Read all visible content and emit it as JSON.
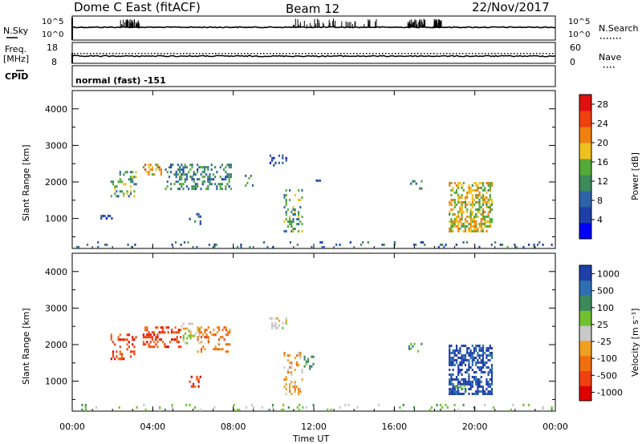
{
  "header": {
    "radar_title": "Dome C East (fitACF)",
    "beam_title": "Beam 12",
    "date_title": "22/Nov/2017"
  },
  "summary_panels": {
    "nsky_label": "N.Sky",
    "nsky_ticks": [
      "10^5",
      "10^0"
    ],
    "nsearch_label": "N.Search",
    "freq_label_line1": "Freq.",
    "freq_label_line2": "[MHz]",
    "freq_ticks": [
      "18",
      "8"
    ],
    "nave_label": "Nave",
    "nave_ticks": [
      "60",
      "0"
    ],
    "cpid_label": "CPID",
    "cpid_value": "normal (fast) -151"
  },
  "colors": {
    "power_scale": [
      "#0000ff",
      "#1e3fa8",
      "#2f63a8",
      "#3d8a5a",
      "#55aa3a",
      "#f0c020",
      "#f08010",
      "#f04010",
      "#e01010"
    ],
    "velocity_scale": [
      "#e00000",
      "#f04010",
      "#f07010",
      "#f0a020",
      "#c8c8c8",
      "#70c030",
      "#3d8a5a",
      "#2f6fb0",
      "#1f3fa8"
    ]
  },
  "chart_data": [
    {
      "type": "heatmap",
      "panel": "power",
      "ylabel": "Slant Range [km]",
      "xlabel": "Time UT",
      "xticks": [
        "00:00",
        "04:00",
        "08:00",
        "12:00",
        "16:00",
        "20:00",
        "00:00"
      ],
      "yticks": [
        "1000",
        "2000",
        "3000",
        "4000"
      ],
      "xlim_hours": [
        0,
        24
      ],
      "ylim_km": [
        180,
        4500
      ],
      "colorbar_label": "Power [dB]",
      "colorbar_ticks": [
        "4",
        "8",
        "12",
        "16",
        "20",
        "24",
        "28"
      ],
      "colorbar_range": [
        0,
        30
      ],
      "patches": [
        {
          "t0": 1.9,
          "t1": 3.2,
          "r0": 1600,
          "r1": 2300,
          "level": 14,
          "density": 0.25
        },
        {
          "t0": 3.5,
          "t1": 4.6,
          "r0": 2200,
          "r1": 2500,
          "level": 20,
          "density": 0.35
        },
        {
          "t0": 4.6,
          "t1": 7.9,
          "r0": 1800,
          "r1": 2500,
          "level": 10,
          "density": 0.35
        },
        {
          "t0": 5.8,
          "t1": 6.4,
          "r0": 850,
          "r1": 1150,
          "level": 8,
          "density": 0.3
        },
        {
          "t0": 1.4,
          "t1": 2.0,
          "r0": 950,
          "r1": 1100,
          "level": 6,
          "density": 0.3
        },
        {
          "t0": 8.4,
          "t1": 9.0,
          "r0": 1900,
          "r1": 2200,
          "level": 10,
          "density": 0.3
        },
        {
          "t0": 9.8,
          "t1": 10.7,
          "r0": 2400,
          "r1": 2750,
          "level": 6,
          "density": 0.35
        },
        {
          "t0": 10.5,
          "t1": 11.5,
          "r0": 600,
          "r1": 1800,
          "level": 12,
          "density": 0.25
        },
        {
          "t0": 12.1,
          "t1": 12.4,
          "r0": 2000,
          "r1": 2200,
          "level": 6,
          "density": 0.3
        },
        {
          "t0": 16.7,
          "t1": 17.4,
          "r0": 1800,
          "r1": 2050,
          "level": 10,
          "density": 0.25
        },
        {
          "t0": 18.7,
          "t1": 20.9,
          "r0": 650,
          "r1": 2000,
          "level": 18,
          "density": 0.55
        },
        {
          "t0": 0.1,
          "t1": 23.9,
          "r0": 190,
          "r1": 380,
          "level": 8,
          "density": 0.08
        }
      ]
    },
    {
      "type": "heatmap",
      "panel": "velocity",
      "ylabel": "Slant Range [km]",
      "xlabel": "Time UT",
      "xticks": [
        "00:00",
        "04:00",
        "08:00",
        "12:00",
        "16:00",
        "20:00",
        "00:00"
      ],
      "yticks": [
        "1000",
        "2000",
        "3000",
        "4000"
      ],
      "xlim_hours": [
        0,
        24
      ],
      "ylim_km": [
        180,
        4500
      ],
      "colorbar_label": "Velocity [m s⁻¹]",
      "colorbar_ticks": [
        "1000",
        "500",
        "100",
        "25",
        "-25",
        "-100",
        "-500",
        "-1000"
      ],
      "patches": [
        {
          "t0": 1.9,
          "t1": 3.2,
          "r0": 1600,
          "r1": 2300,
          "level": 1,
          "density": 0.25
        },
        {
          "t0": 3.5,
          "t1": 5.4,
          "r0": 1900,
          "r1": 2500,
          "level": 1,
          "density": 0.4
        },
        {
          "t0": 5.4,
          "t1": 6.4,
          "r0": 2000,
          "r1": 2600,
          "level": 4,
          "density": 0.3
        },
        {
          "t0": 6.2,
          "t1": 7.9,
          "r0": 1800,
          "r1": 2500,
          "level": 2,
          "density": 0.3
        },
        {
          "t0": 5.8,
          "t1": 6.4,
          "r0": 850,
          "r1": 1150,
          "level": 1,
          "density": 0.3
        },
        {
          "t0": 9.8,
          "t1": 10.7,
          "r0": 2400,
          "r1": 2750,
          "level": 4,
          "density": 0.35
        },
        {
          "t0": 10.5,
          "t1": 11.5,
          "r0": 600,
          "r1": 1800,
          "level": 3,
          "density": 0.25
        },
        {
          "t0": 11.5,
          "t1": 12.1,
          "r0": 1300,
          "r1": 1700,
          "level": 6,
          "density": 0.3
        },
        {
          "t0": 16.7,
          "t1": 17.4,
          "r0": 1800,
          "r1": 2050,
          "level": 6,
          "density": 0.25
        },
        {
          "t0": 18.7,
          "t1": 20.9,
          "r0": 650,
          "r1": 2000,
          "level": 8,
          "density": 0.55
        },
        {
          "t0": 19.0,
          "t1": 19.6,
          "r0": 700,
          "r1": 900,
          "level": 5,
          "density": 0.5
        },
        {
          "t0": 0.1,
          "t1": 23.9,
          "r0": 190,
          "r1": 380,
          "level": 5,
          "density": 0.08
        }
      ]
    }
  ]
}
